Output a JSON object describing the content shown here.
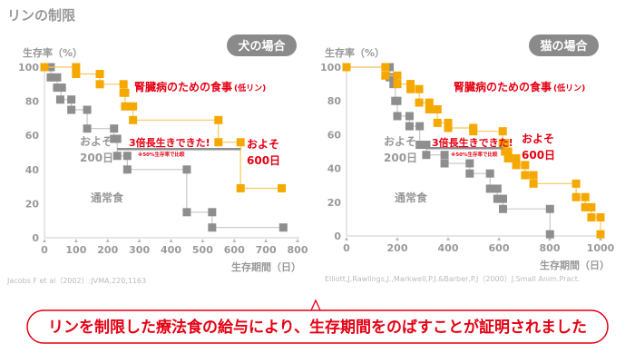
{
  "page_title": "リンの制限",
  "conclusion": "リンを制限した療法食の給与により、生存期間をのばすことが証明されました",
  "colors": {
    "low_phosphorus": "#f5a800",
    "normal": "#8e8e8e",
    "accent_red": "#e60012",
    "pill": "#8a8a8a"
  },
  "chart_data": [
    {
      "type": "line",
      "step": true,
      "panel_label": "犬の場合",
      "ylabel": "生存率（%）",
      "xlabel": "生存期間（日）",
      "xlim": [
        0,
        800
      ],
      "ylim": [
        0,
        100
      ],
      "xticks": [
        "0",
        "100",
        "200",
        "300",
        "400",
        "500",
        "600",
        "700",
        "800"
      ],
      "yticks": [
        "0",
        "20",
        "40",
        "60",
        "80",
        "100"
      ],
      "source": "Jacobs F et al（2002）:JVMA,220,1163",
      "series": [
        {
          "name": "腎臓病のための食事",
          "name_suffix": "(低リン)",
          "color": "#f5a800",
          "points": [
            [
              0,
              100
            ],
            [
              100,
              100
            ],
            [
              100,
              96
            ],
            [
              175,
              96
            ],
            [
              175,
              90
            ],
            [
              250,
              90
            ],
            [
              250,
              85
            ],
            [
              255,
              85
            ],
            [
              255,
              77
            ],
            [
              280,
              77
            ],
            [
              280,
              69
            ],
            [
              550,
              69
            ],
            [
              550,
              56
            ],
            [
              620,
              56
            ],
            [
              620,
              29
            ],
            [
              750,
              29
            ]
          ]
        },
        {
          "name": "通常食",
          "color": "#8e8e8e",
          "points": [
            [
              0,
              100
            ],
            [
              20,
              100
            ],
            [
              20,
              94
            ],
            [
              40,
              94
            ],
            [
              40,
              88
            ],
            [
              55,
              88
            ],
            [
              50,
              81
            ],
            [
              85,
              81
            ],
            [
              85,
              75
            ],
            [
              135,
              75
            ],
            [
              135,
              64
            ],
            [
              220,
              64
            ],
            [
              220,
              58
            ],
            [
              230,
              58
            ],
            [
              230,
              48
            ],
            [
              262,
              48
            ],
            [
              262,
              40
            ],
            [
              450,
              40
            ],
            [
              450,
              15
            ],
            [
              530,
              15
            ],
            [
              530,
              6
            ],
            [
              755,
              6
            ]
          ]
        }
      ],
      "annotations": {
        "headline": "3倍長生きできた!",
        "note": "※50%生存率で比較",
        "normal_median": [
          "およそ",
          "200日"
        ],
        "low_median": [
          "およそ",
          "600日"
        ],
        "median_range_days": [
          230,
          620
        ],
        "median_level": 52
      }
    },
    {
      "type": "line",
      "step": true,
      "panel_label": "猫の場合",
      "ylabel": "生存率（%）",
      "xlabel": "生存期間（日）",
      "xlim": [
        0,
        1000
      ],
      "ylim": [
        0,
        100
      ],
      "xticks": [
        "0",
        "200",
        "400",
        "600",
        "800",
        "1000"
      ],
      "yticks": [
        "0",
        "20",
        "40",
        "60",
        "80",
        "100"
      ],
      "source": "Elliott,J,Rawlings,J.,Markwell,P.J.&Barber,P.J（2000）J.Small Anim.Pract.",
      "series": [
        {
          "name": "腎臓病のための食事",
          "name_suffix": "(低リン)",
          "color": "#f5a800",
          "points": [
            [
              0,
              100
            ],
            [
              153,
              100
            ],
            [
              153,
              95
            ],
            [
              200,
              95
            ],
            [
              200,
              90
            ],
            [
              252,
              90
            ],
            [
              252,
              87
            ],
            [
              286,
              87
            ],
            [
              286,
              79
            ],
            [
              326,
              79
            ],
            [
              326,
              75
            ],
            [
              358,
              75
            ],
            [
              358,
              67
            ],
            [
              400,
              67
            ],
            [
              400,
              64
            ],
            [
              499,
              64
            ],
            [
              499,
              62
            ],
            [
              615,
              62
            ],
            [
              615,
              55
            ],
            [
              624,
              55
            ],
            [
              624,
              50
            ],
            [
              636,
              50
            ],
            [
              636,
              46
            ],
            [
              668,
              46
            ],
            [
              668,
              42
            ],
            [
              703,
              42
            ],
            [
              703,
              36
            ],
            [
              736,
              36
            ],
            [
              736,
              31
            ],
            [
              904,
              31
            ],
            [
              904,
              23
            ],
            [
              940,
              23
            ],
            [
              940,
              17
            ],
            [
              964,
              17
            ],
            [
              964,
              11
            ],
            [
              1000,
              11
            ],
            [
              1000,
              1
            ]
          ]
        },
        {
          "name": "通常食",
          "color": "#8e8e8e",
          "points": [
            [
              0,
              100
            ],
            [
              170,
              100
            ],
            [
              170,
              94
            ],
            [
              185,
              94
            ],
            [
              185,
              90
            ],
            [
              192,
              90
            ],
            [
              192,
              80
            ],
            [
              200,
              80
            ],
            [
              200,
              71
            ],
            [
              248,
              71
            ],
            [
              248,
              65
            ],
            [
              288,
              65
            ],
            [
              288,
              54
            ],
            [
              314,
              54
            ],
            [
              314,
              48
            ],
            [
              386,
              48
            ],
            [
              386,
              43
            ],
            [
              485,
              43
            ],
            [
              485,
              37
            ],
            [
              565,
              37
            ],
            [
              565,
              28
            ],
            [
              594,
              28
            ],
            [
              594,
              22
            ],
            [
              616,
              22
            ],
            [
              616,
              16
            ],
            [
              801,
              16
            ],
            [
              801,
              1
            ]
          ]
        }
      ],
      "annotations": {
        "headline": "3倍長生きできた!",
        "note": "※50%生存率で比較",
        "normal_median": [
          "およそ",
          "200日"
        ],
        "low_median": [
          "およそ",
          "600日"
        ],
        "median_range_days": [
          314,
          616
        ],
        "median_level": 52
      }
    }
  ]
}
